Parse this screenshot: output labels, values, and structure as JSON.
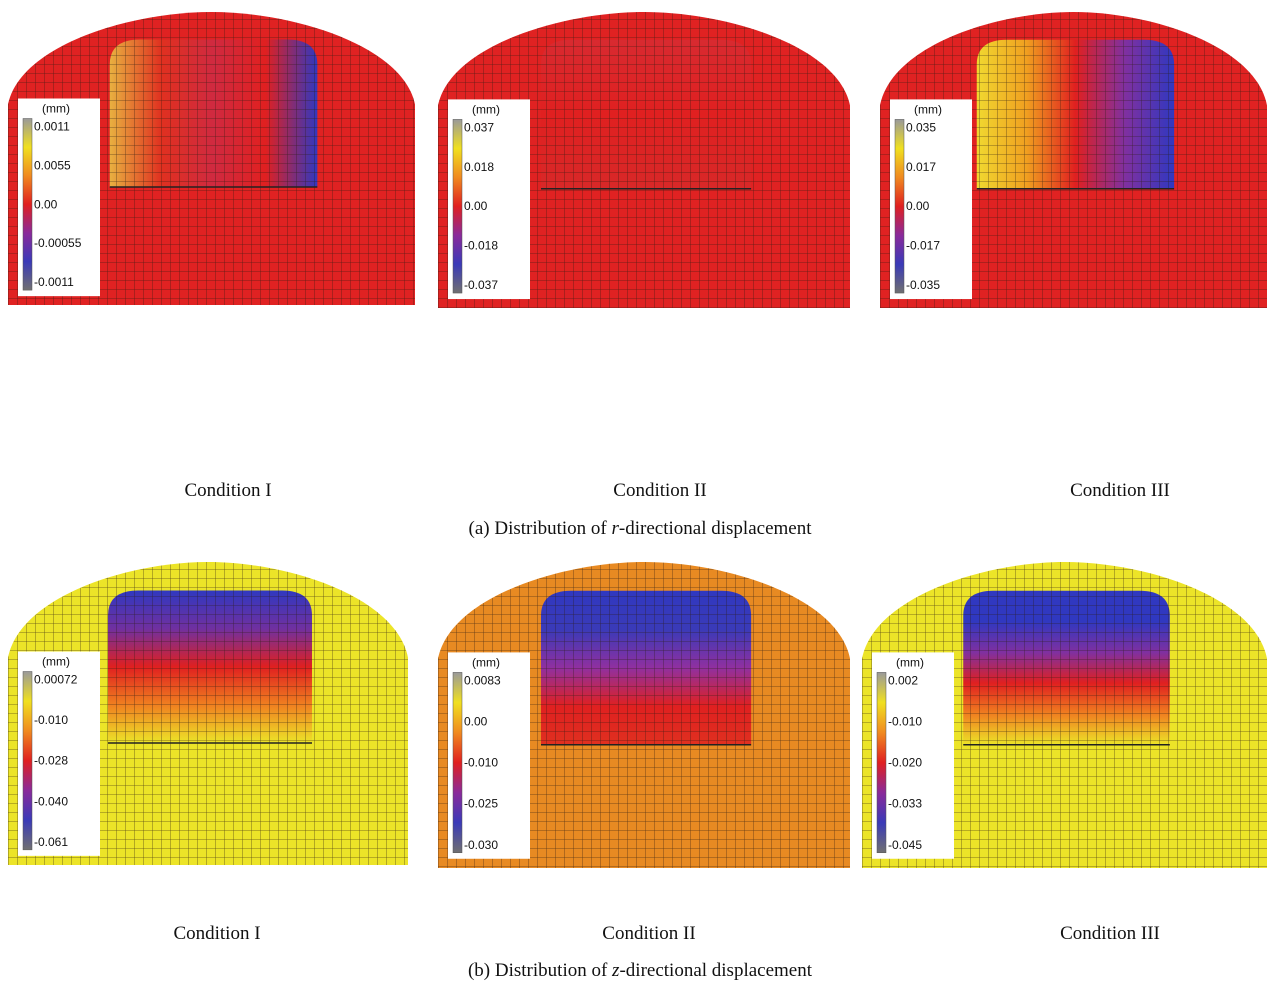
{
  "rows": [
    {
      "caption": {
        "prefix": "(a) Distribution of ",
        "variable": "r",
        "suffix": "-directional displacement"
      },
      "panels": [
        {
          "label": "Condition I",
          "legend": {
            "unit": "(mm)",
            "ticks": [
              "0.0011",
              "0.0055",
              "0.00",
              "-0.00055",
              "-0.0011"
            ]
          }
        },
        {
          "label": "Condition II",
          "legend": {
            "unit": "(mm)",
            "ticks": [
              "0.037",
              "0.018",
              "0.00",
              "-0.018",
              "-0.037"
            ]
          }
        },
        {
          "label": "Condition III",
          "legend": {
            "unit": "(mm)",
            "ticks": [
              "0.035",
              "0.017",
              "0.00",
              "-0.017",
              "-0.035"
            ]
          }
        }
      ]
    },
    {
      "caption": {
        "prefix": "(b) Distribution of ",
        "variable": "z",
        "suffix": "-directional displacement"
      },
      "panels": [
        {
          "label": "Condition I",
          "legend": {
            "unit": "(mm)",
            "ticks": [
              "0.00072",
              "-0.010",
              "-0.028",
              "-0.040",
              "-0.061"
            ]
          }
        },
        {
          "label": "Condition II",
          "legend": {
            "unit": "(mm)",
            "ticks": [
              "0.0083",
              "0.00",
              "-0.010",
              "-0.025",
              "-0.030"
            ]
          }
        },
        {
          "label": "Condition III",
          "legend": {
            "unit": "(mm)",
            "ticks": [
              "0.002",
              "-0.010",
              "-0.020",
              "-0.033",
              "-0.045"
            ]
          }
        }
      ]
    }
  ]
}
